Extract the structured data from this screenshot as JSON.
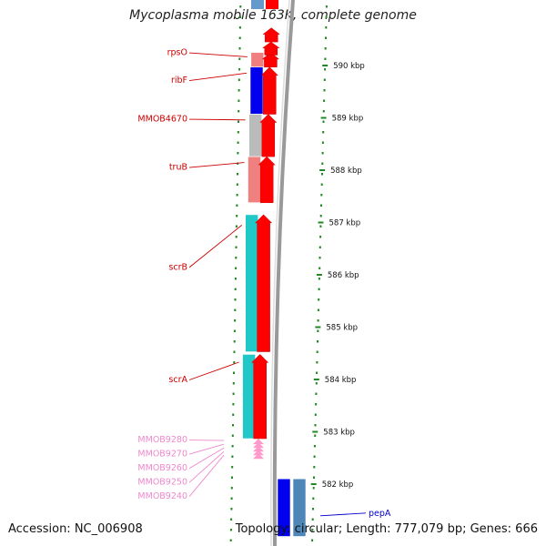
{
  "title": "Mycoplasma mobile 163K, complete genome",
  "accession_text": "Accession: NC_006908",
  "topology_text": "Topology: circular; Length: 777,079 bp; Genes: 666",
  "colors": {
    "gene_label": "#cc0000",
    "faded_label": "#ee88cc",
    "pepA_label": "#0000cc",
    "tick": "#228822",
    "strand": "#ff0000",
    "backbone": "#999999"
  },
  "ruler": [
    {
      "label": "590 kbp",
      "kbp": 590
    },
    {
      "label": "589 kbp",
      "kbp": 589
    },
    {
      "label": "588 kbp",
      "kbp": 588
    },
    {
      "label": "587 kbp",
      "kbp": 587
    },
    {
      "label": "586 kbp",
      "kbp": 586
    },
    {
      "label": "585 kbp",
      "kbp": 585
    },
    {
      "label": "584 kbp",
      "kbp": 584
    },
    {
      "label": "583 kbp",
      "kbp": 583
    },
    {
      "label": "582 kbp",
      "kbp": 582
    }
  ],
  "genes": [
    {
      "name": "rpsO",
      "color": "#f08080",
      "start_kbp": 590.25,
      "end_kbp": 589.97,
      "label_kbp": 590.25,
      "style": "normal"
    },
    {
      "name": "ribF",
      "color": "#0000ee",
      "start_kbp": 589.97,
      "end_kbp": 589.07,
      "label_kbp": 589.72,
      "style": "normal"
    },
    {
      "name": "MMOB4670",
      "color": "#bbbbbb",
      "start_kbp": 589.07,
      "end_kbp": 588.26,
      "label_kbp": 588.98,
      "style": "normal"
    },
    {
      "name": "truB",
      "color": "#f08080",
      "start_kbp": 588.26,
      "end_kbp": 587.38,
      "label_kbp": 588.06,
      "style": "normal"
    },
    {
      "name": "scrB",
      "color": "#20c8c8",
      "start_kbp": 587.15,
      "end_kbp": 584.53,
      "label_kbp": 586.15,
      "style": "normal"
    },
    {
      "name": "scrA",
      "color": "#20c8c8",
      "start_kbp": 584.48,
      "end_kbp": 582.87,
      "label_kbp": 584.0,
      "style": "normal"
    },
    {
      "name": "MMOB9280",
      "color": "#ff99cc",
      "start_kbp": 582.85,
      "end_kbp": 582.78,
      "label_kbp": 582.85,
      "style": "faded"
    },
    {
      "name": "MMOB9270",
      "color": "#ff99cc",
      "start_kbp": 582.78,
      "end_kbp": 582.71,
      "label_kbp": 582.58,
      "style": "faded"
    },
    {
      "name": "MMOB9260",
      "color": "#ff99cc",
      "start_kbp": 582.71,
      "end_kbp": 582.64,
      "label_kbp": 582.31,
      "style": "faded"
    },
    {
      "name": "MMOB9250",
      "color": "#ff99cc",
      "start_kbp": 582.64,
      "end_kbp": 582.57,
      "label_kbp": 582.04,
      "style": "faded"
    },
    {
      "name": "MMOB9240",
      "color": "#ff99cc",
      "start_kbp": 582.57,
      "end_kbp": 582.5,
      "label_kbp": 581.77,
      "style": "faded"
    }
  ],
  "pepA": {
    "name": "pepA",
    "color": "#0000ee",
    "start_kbp": 582.1,
    "end_kbp": 581.0,
    "label_kbp": 581.43
  }
}
